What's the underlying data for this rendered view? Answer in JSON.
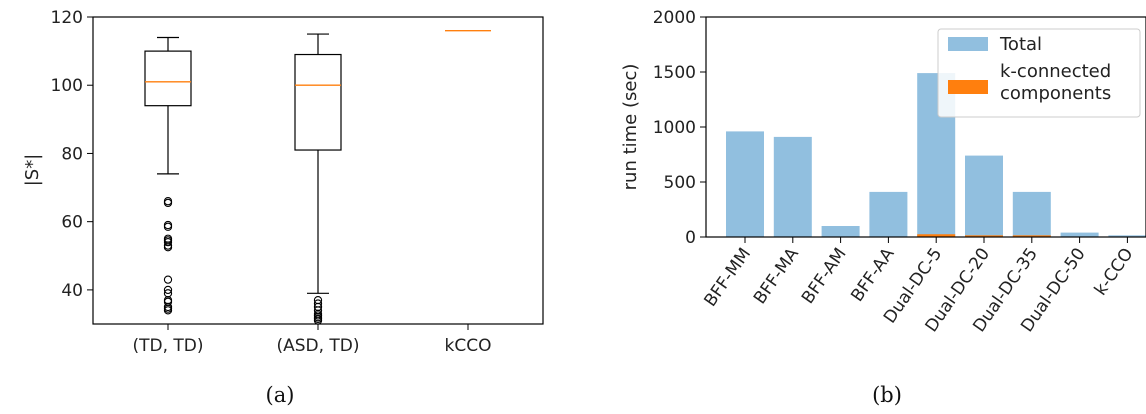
{
  "chart_data": [
    {
      "type": "box",
      "caption": "(a)",
      "ylabel": "|S*|",
      "ylim": [
        30,
        120
      ],
      "yticks": [
        40,
        60,
        80,
        100,
        120
      ],
      "categories": [
        "(TD, TD)",
        "(ASD, TD)",
        "kCCO"
      ],
      "boxes": [
        {
          "category": "(TD, TD)",
          "q1": 94,
          "median": 101,
          "q3": 110,
          "whisker_low": 74,
          "whisker_high": 114,
          "outliers": [
            66,
            65.5,
            59,
            58.5,
            55,
            54.5,
            54,
            53,
            52.5,
            43,
            40,
            39,
            37,
            36.5,
            35,
            34.5,
            34
          ]
        },
        {
          "category": "(ASD, TD)",
          "q1": 81,
          "median": 100,
          "q3": 109,
          "whisker_low": 39,
          "whisker_high": 115,
          "outliers": [
            37,
            36,
            35,
            34,
            33,
            32.5,
            32,
            31.5,
            31
          ]
        },
        {
          "category": "kCCO",
          "q1": 116,
          "median": 116,
          "q3": 116,
          "whisker_low": 116,
          "whisker_high": 116,
          "outliers": []
        }
      ],
      "colors": {
        "median": "#ff7f0e",
        "box": "#000000"
      }
    },
    {
      "type": "bar",
      "caption": "(b)",
      "ylabel": "run time (sec)",
      "ylim": [
        0,
        2000
      ],
      "yticks": [
        0,
        500,
        1000,
        1500,
        2000
      ],
      "categories": [
        "BFF-MM",
        "BFF-MA",
        "BFF-AM",
        "BFF-AA",
        "Dual-DC-5",
        "Dual-DC-20",
        "Dual-DC-35",
        "Dual-DC-50",
        "k-CCO"
      ],
      "series": [
        {
          "name": "Total",
          "color": "#91bfdf",
          "values": [
            960,
            910,
            100,
            410,
            1490,
            740,
            410,
            40,
            15
          ]
        },
        {
          "name": "k-connected\ncomponents",
          "color": "#ff7f0e",
          "values": [
            0,
            0,
            0,
            0,
            25,
            15,
            15,
            0,
            0
          ]
        }
      ],
      "legend": "top-right"
    }
  ]
}
